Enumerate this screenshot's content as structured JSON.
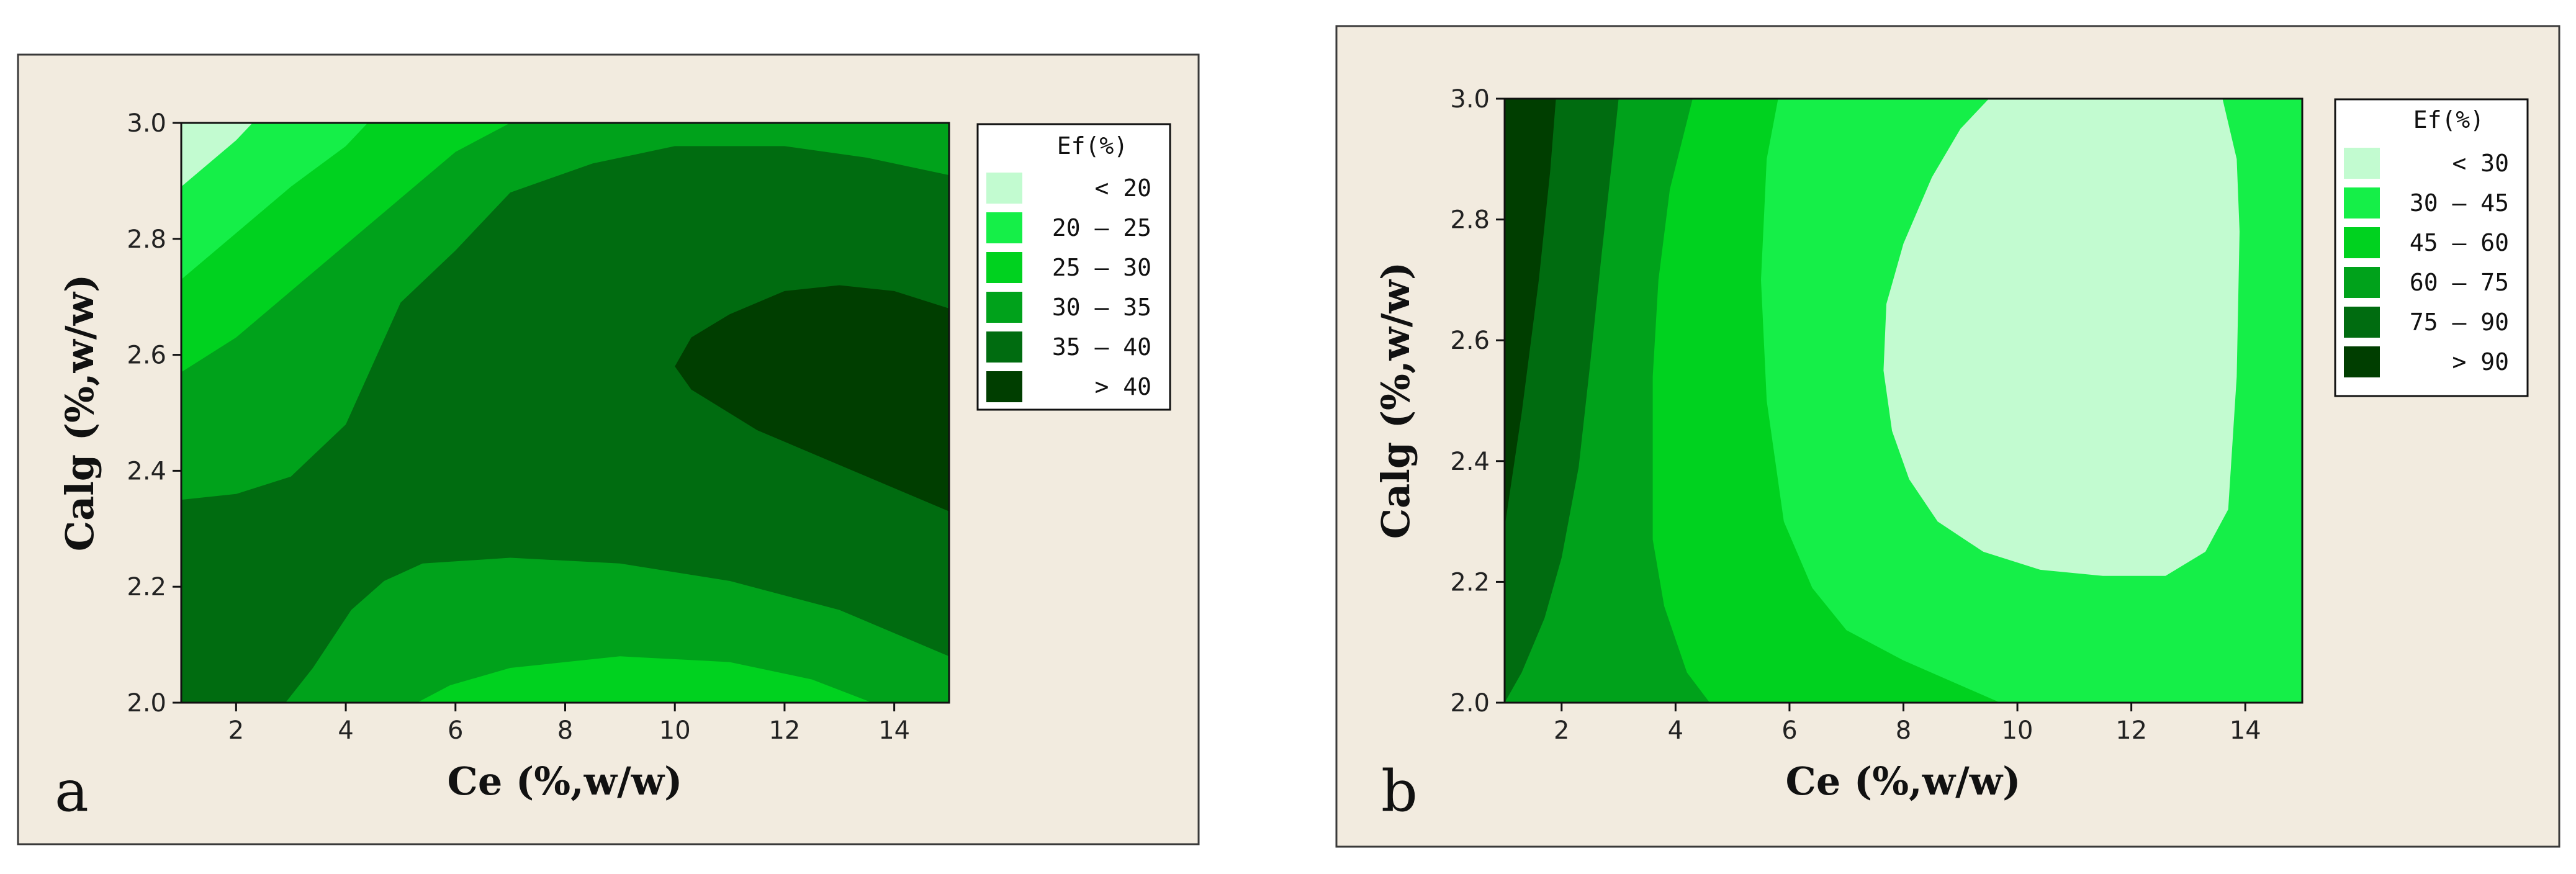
{
  "colors": {
    "panel_background": "#f2ebdf",
    "panel_border": "#3a3a3a"
  },
  "chart_data": [
    {
      "type": "contour",
      "panel_label": "a",
      "xlabel": "Ce (%,w/w)",
      "ylabel": "Calg (%,w/w)",
      "xlim": [
        1,
        15
      ],
      "ylim": [
        2.0,
        3.0
      ],
      "xticks": [
        2,
        4,
        6,
        8,
        10,
        12,
        14
      ],
      "yticks": [
        2.0,
        2.2,
        2.4,
        2.6,
        2.8,
        3.0
      ],
      "xtick_labels": [
        "2",
        "4",
        "6",
        "8",
        "10",
        "12",
        "14"
      ],
      "ytick_labels": [
        "2.0",
        "2.2",
        "2.4",
        "2.6",
        "2.8",
        "3.0"
      ],
      "legend": {
        "title": "Ef(%)",
        "placement": "right",
        "entries": [
          {
            "label": "< 20",
            "color": "#c2fbd0"
          },
          {
            "label": "20 – 25",
            "color": "#15ef48"
          },
          {
            "label": "25 – 30",
            "color": "#00d21f"
          },
          {
            "label": "30 – 35",
            "color": "#00a21b"
          },
          {
            "label": "35 – 40",
            "color": "#006c10"
          },
          {
            "label": "> 40",
            "color": "#003e00"
          }
        ]
      },
      "regions": [
        {
          "level": "30 – 35",
          "color": "#00a21b",
          "points": [
            [
              1,
              2.0
            ],
            [
              15,
              2.0
            ],
            [
              15,
              3.0
            ],
            [
              1,
              3.0
            ]
          ]
        },
        {
          "level": "35 – 40",
          "color": "#006c10",
          "points": [
            [
              1,
              2.0
            ],
            [
              2.9,
              2.0
            ],
            [
              3.4,
              2.06
            ],
            [
              4.1,
              2.16
            ],
            [
              4.7,
              2.21
            ],
            [
              5.4,
              2.24
            ],
            [
              7.0,
              2.25
            ],
            [
              9.0,
              2.24
            ],
            [
              11.0,
              2.21
            ],
            [
              13.0,
              2.16
            ],
            [
              15,
              2.08
            ],
            [
              15,
              2.91
            ],
            [
              13.5,
              2.94
            ],
            [
              12.0,
              2.96
            ],
            [
              10.0,
              2.96
            ],
            [
              8.5,
              2.93
            ],
            [
              7.0,
              2.88
            ],
            [
              6.0,
              2.78
            ],
            [
              5.0,
              2.69
            ],
            [
              4.0,
              2.48
            ],
            [
              3.0,
              2.39
            ],
            [
              2.0,
              2.36
            ],
            [
              1,
              2.35
            ]
          ]
        },
        {
          "level": "> 40",
          "color": "#003e00",
          "points": [
            [
              15,
              2.33
            ],
            [
              13.0,
              2.41
            ],
            [
              11.5,
              2.47
            ],
            [
              10.3,
              2.54
            ],
            [
              10.0,
              2.58
            ],
            [
              10.3,
              2.63
            ],
            [
              11.0,
              2.67
            ],
            [
              12.0,
              2.71
            ],
            [
              13.0,
              2.72
            ],
            [
              14.0,
              2.71
            ],
            [
              15,
              2.68
            ]
          ]
        },
        {
          "level": "25 – 30",
          "color": "#00d21f",
          "points": [
            [
              5.3,
              2.0
            ],
            [
              5.9,
              2.03
            ],
            [
              7.0,
              2.06
            ],
            [
              9.0,
              2.08
            ],
            [
              11.0,
              2.07
            ],
            [
              12.5,
              2.04
            ],
            [
              13.6,
              2.0
            ]
          ]
        },
        {
          "level": "25 – 30",
          "color": "#00d21f",
          "points": [
            [
              1,
              2.57
            ],
            [
              2.0,
              2.63
            ],
            [
              3.0,
              2.71
            ],
            [
              4.0,
              2.79
            ],
            [
              5.0,
              2.87
            ],
            [
              6.0,
              2.95
            ],
            [
              7.0,
              3.0
            ],
            [
              1,
              3.0
            ]
          ]
        },
        {
          "level": "20 – 25",
          "color": "#15ef48",
          "points": [
            [
              1,
              2.73
            ],
            [
              2.0,
              2.81
            ],
            [
              3.0,
              2.89
            ],
            [
              4.0,
              2.96
            ],
            [
              4.4,
              3.0
            ],
            [
              1,
              3.0
            ]
          ]
        },
        {
          "level": "< 20",
          "color": "#c2fbd0",
          "points": [
            [
              1,
              2.89
            ],
            [
              1.5,
              2.93
            ],
            [
              2.0,
              2.97
            ],
            [
              2.3,
              3.0
            ],
            [
              1,
              3.0
            ]
          ]
        }
      ]
    },
    {
      "type": "contour",
      "panel_label": "b",
      "xlabel": "Ce (%,w/w)",
      "ylabel": "Calg (%,w/w)",
      "xlim": [
        1,
        15
      ],
      "ylim": [
        2.0,
        3.0
      ],
      "xticks": [
        2,
        4,
        6,
        8,
        10,
        12,
        14
      ],
      "yticks": [
        2.0,
        2.2,
        2.4,
        2.6,
        2.8,
        3.0
      ],
      "xtick_labels": [
        "2",
        "4",
        "6",
        "8",
        "10",
        "12",
        "14"
      ],
      "ytick_labels": [
        "2.0",
        "2.2",
        "2.4",
        "2.6",
        "2.8",
        "3.0"
      ],
      "legend": {
        "title": "Ef(%)",
        "placement": "right",
        "entries": [
          {
            "label": "< 30",
            "color": "#c2fbd0"
          },
          {
            "label": "30 – 45",
            "color": "#15ef48"
          },
          {
            "label": "45 – 60",
            "color": "#00d21f"
          },
          {
            "label": "60 – 75",
            "color": "#00a21b"
          },
          {
            "label": "75 – 90",
            "color": "#006c10"
          },
          {
            "label": "> 90",
            "color": "#003e00"
          }
        ]
      },
      "regions": [
        {
          "level": "30 – 45",
          "color": "#15ef48",
          "points": [
            [
              1,
              2.0
            ],
            [
              15,
              2.0
            ],
            [
              15,
              3.0
            ],
            [
              1,
              3.0
            ]
          ]
        },
        {
          "level": "45 – 60",
          "color": "#00d21f",
          "points": [
            [
              1,
              2.0
            ],
            [
              9.7,
              2.0
            ],
            [
              8.0,
              2.07
            ],
            [
              7.0,
              2.12
            ],
            [
              6.4,
              2.19
            ],
            [
              5.9,
              2.3
            ],
            [
              5.6,
              2.5
            ],
            [
              5.5,
              2.7
            ],
            [
              5.6,
              2.9
            ],
            [
              5.8,
              3.0
            ],
            [
              1,
              3.0
            ]
          ]
        },
        {
          "level": "60 – 75",
          "color": "#00a21b",
          "points": [
            [
              1,
              2.0
            ],
            [
              4.6,
              2.0
            ],
            [
              4.2,
              2.05
            ],
            [
              3.8,
              2.16
            ],
            [
              3.6,
              2.27
            ],
            [
              3.6,
              2.43
            ],
            [
              3.6,
              2.54
            ],
            [
              3.7,
              2.7
            ],
            [
              3.9,
              2.85
            ],
            [
              4.3,
              3.0
            ],
            [
              1,
              3.0
            ]
          ]
        },
        {
          "level": "75 – 90",
          "color": "#006c10",
          "points": [
            [
              1,
              2.0
            ],
            [
              1.3,
              2.05
            ],
            [
              1.7,
              2.14
            ],
            [
              2.0,
              2.24
            ],
            [
              2.3,
              2.39
            ],
            [
              2.5,
              2.56
            ],
            [
              2.7,
              2.74
            ],
            [
              2.9,
              2.91
            ],
            [
              3.0,
              3.0
            ],
            [
              1,
              3.0
            ]
          ]
        },
        {
          "level": "> 90",
          "color": "#003e00",
          "points": [
            [
              1,
              2.29
            ],
            [
              1.3,
              2.48
            ],
            [
              1.6,
              2.7
            ],
            [
              1.8,
              2.88
            ],
            [
              1.9,
              3.0
            ],
            [
              1,
              3.0
            ]
          ]
        },
        {
          "level": "< 30",
          "color": "#c2fbd0",
          "points": [
            [
              9.5,
              3.0
            ],
            [
              13.6,
              3.0
            ],
            [
              13.85,
              2.9
            ],
            [
              13.9,
              2.78
            ],
            [
              13.85,
              2.54
            ],
            [
              13.7,
              2.32
            ],
            [
              13.3,
              2.25
            ],
            [
              12.6,
              2.21
            ],
            [
              11.5,
              2.21
            ],
            [
              10.4,
              2.22
            ],
            [
              9.4,
              2.25
            ],
            [
              8.6,
              2.3
            ],
            [
              8.1,
              2.37
            ],
            [
              7.8,
              2.45
            ],
            [
              7.65,
              2.55
            ],
            [
              7.7,
              2.66
            ],
            [
              8.0,
              2.76
            ],
            [
              8.5,
              2.87
            ],
            [
              9.0,
              2.95
            ]
          ]
        }
      ]
    }
  ]
}
